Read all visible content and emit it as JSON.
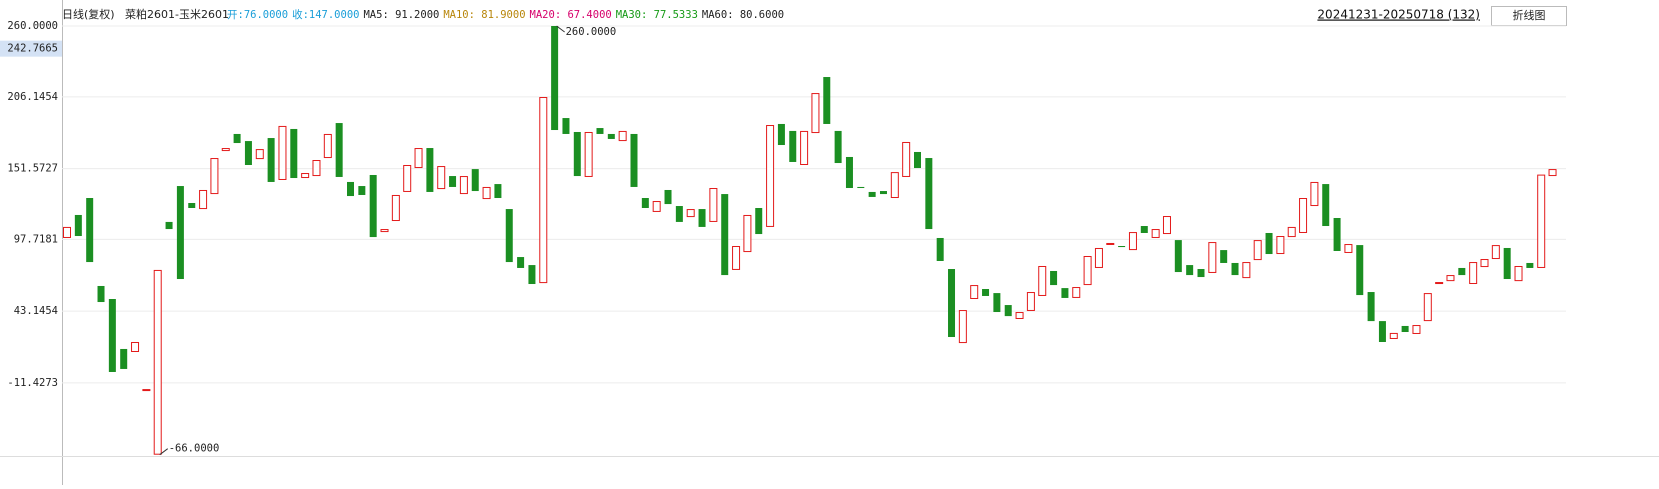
{
  "header": {
    "title": "日线(复权)",
    "symbol": "菜粕2601-玉米2601",
    "stats": [
      {
        "text": "开:76.0000",
        "color": "#1a9ed8"
      },
      {
        "text": "收:147.0000",
        "color": "#1a9ed8"
      },
      {
        "text": "MA5: 91.2000",
        "color": "#222222"
      },
      {
        "text": "MA10: 81.9000",
        "color": "#b8860b"
      },
      {
        "text": "MA20: 67.4000",
        "color": "#d6006b"
      },
      {
        "text": "MA30: 77.5333",
        "color": "#159a15"
      },
      {
        "text": "MA60: 80.6000",
        "color": "#222222"
      }
    ],
    "range": "20241231-20250718 (132)",
    "button": "折线图"
  },
  "chart_data": {
    "type": "candlestick",
    "up_color": "#e31a1a",
    "down_color": "#1b8f22",
    "grid": true,
    "ylim": [
      -66,
      260
    ],
    "yticks": [
      {
        "value": 260,
        "label": "260.0000"
      },
      206.1454,
      151.5727,
      97.7181,
      43.1454,
      -11.4273
    ],
    "crosshair": 242.7665,
    "annotations": [
      {
        "value": 260,
        "label": "260.0000",
        "index": 43
      },
      {
        "value": -66,
        "label": "-66.0000",
        "index": 8
      }
    ],
    "open": [
      98.8,
      116.3,
      129.2,
      62.3,
      52.4,
      14.4,
      12.1,
      -17.6,
      -66,
      111.0,
      138.3,
      125.4,
      120.8,
      132.2,
      164.9,
      177.9,
      172.5,
      158.8,
      174.8,
      142.9,
      181.7,
      144.4,
      145.9,
      159.6,
      186.2,
      141.4,
      138.3,
      146.7,
      103.3,
      111.7,
      133.8,
      152.0,
      167.2,
      136.0,
      145.9,
      132.2,
      151.2,
      128.4,
      139.8,
      120.8,
      84.3,
      78.2,
      64.5,
      260,
      190.0,
      179.4,
      145.2,
      182.4,
      177.9,
      172.5,
      177.9,
      129.2,
      118.6,
      135.3,
      123.1,
      114.7,
      120.8,
      111.0,
      132.2,
      74.5,
      88.1,
      121.6,
      107.2,
      185.5,
      180.2,
      154.3,
      178.6,
      221.2,
      180.2,
      160.4,
      137.6,
      133.8,
      134.5,
      129.2,
      145.2,
      164.2,
      159.6,
      98.8,
      75.2,
      18.9,
      52.4,
      60.0,
      56.9,
      47.8,
      37.2,
      43.3,
      54.7,
      73.7,
      60.7,
      53.2,
      63.0,
      76.0,
      94.2,
      92.7,
      89.6,
      107.9,
      98.8,
      101.8,
      97.2,
      78.2,
      75.2,
      72.2,
      89.6,
      79.8,
      68.3,
      82.0,
      102.6,
      86.6,
      99.5,
      102.6,
      123.1,
      139.8,
      114.0,
      87.4,
      93.4,
      57.7,
      35.6,
      22.0,
      31.9,
      25.8,
      35.6,
      64.5,
      66.0,
      76.0,
      63.8,
      76.7,
      82.8,
      91.2,
      66.0,
      79.8,
      76,
      145.9
    ],
    "close": [
      107.2,
      100.3,
      80.5,
      50.1,
      -3.1,
      -0.8,
      19.7,
      -16.1,
      74.5,
      105.6,
      67.6,
      121.6,
      135.3,
      159.6,
      167.2,
      171.0,
      154.3,
      166.4,
      141.4,
      184.0,
      144.4,
      148.2,
      158.1,
      177.9,
      145.2,
      130.7,
      131.5,
      99.5,
      105.6,
      131.5,
      154.3,
      167.2,
      133.8,
      153.5,
      137.6,
      145.9,
      134.5,
      137.6,
      129.2,
      80.5,
      76.0,
      63.8,
      206.0,
      180.9,
      177.9,
      145.9,
      179.4,
      177.9,
      174.1,
      180.2,
      137.6,
      121.6,
      126.9,
      124.6,
      111.0,
      120.8,
      107.2,
      136.8,
      70.6,
      92.7,
      116.3,
      101.8,
      184.7,
      169.5,
      156.6,
      180.2,
      209.0,
      185.5,
      155.8,
      136.8,
      136.8,
      130.0,
      132.2,
      148.9,
      171.8,
      152.0,
      105.6,
      81.3,
      23.5,
      44.0,
      63.0,
      54.7,
      42.5,
      39.4,
      42.5,
      57.7,
      77.5,
      63.0,
      53.2,
      61.5,
      85.1,
      91.2,
      95.0,
      91.9,
      103.3,
      102.6,
      105.6,
      115.5,
      72.9,
      70.6,
      69.1,
      95.7,
      79.8,
      70.6,
      80.5,
      97.2,
      86.6,
      100.3,
      107.2,
      129.2,
      141.4,
      107.9,
      88.9,
      94.2,
      55.4,
      35.6,
      19.7,
      26.6,
      27.3,
      32.6,
      56.9,
      65.3,
      70.6,
      70.6,
      80.5,
      82.8,
      93.4,
      67.6,
      77.5,
      76.0,
      147,
      151.2
    ]
  }
}
